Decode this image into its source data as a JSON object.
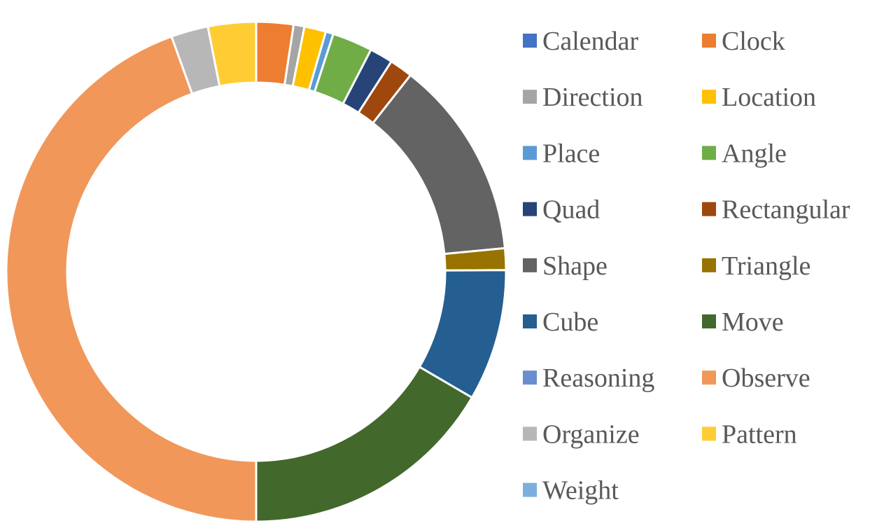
{
  "chart_data": {
    "type": "pie",
    "variant": "doughnut",
    "legend_position": "right",
    "series": [
      {
        "name": "Calendar",
        "value": 0.0,
        "color": "#4472C4"
      },
      {
        "name": "Clock",
        "value": 2.4,
        "color": "#ED7D31"
      },
      {
        "name": "Direction",
        "value": 0.7,
        "color": "#A5A5A5"
      },
      {
        "name": "Location",
        "value": 1.4,
        "color": "#FFC000"
      },
      {
        "name": "Place",
        "value": 0.5,
        "color": "#5B9BD5"
      },
      {
        "name": "Angle",
        "value": 2.6,
        "color": "#70AD47"
      },
      {
        "name": "Quad",
        "value": 1.5,
        "color": "#264478"
      },
      {
        "name": "Rectangular",
        "value": 1.5,
        "color": "#9E480E"
      },
      {
        "name": "Shape",
        "value": 12.9,
        "color": "#636363"
      },
      {
        "name": "Triangle",
        "value": 1.4,
        "color": "#997300"
      },
      {
        "name": "Cube",
        "value": 8.5,
        "color": "#255E91"
      },
      {
        "name": "Move",
        "value": 16.6,
        "color": "#43682B"
      },
      {
        "name": "Reasoning",
        "value": 0.0,
        "color": "#698ED0"
      },
      {
        "name": "Observe",
        "value": 44.5,
        "color": "#F1975A"
      },
      {
        "name": "Organize",
        "value": 2.4,
        "color": "#B7B7B7"
      },
      {
        "name": "Pattern",
        "value": 3.1,
        "color": "#FFCD33"
      },
      {
        "name": "Weight",
        "value": 0.0,
        "color": "#7CAFDD"
      }
    ]
  }
}
